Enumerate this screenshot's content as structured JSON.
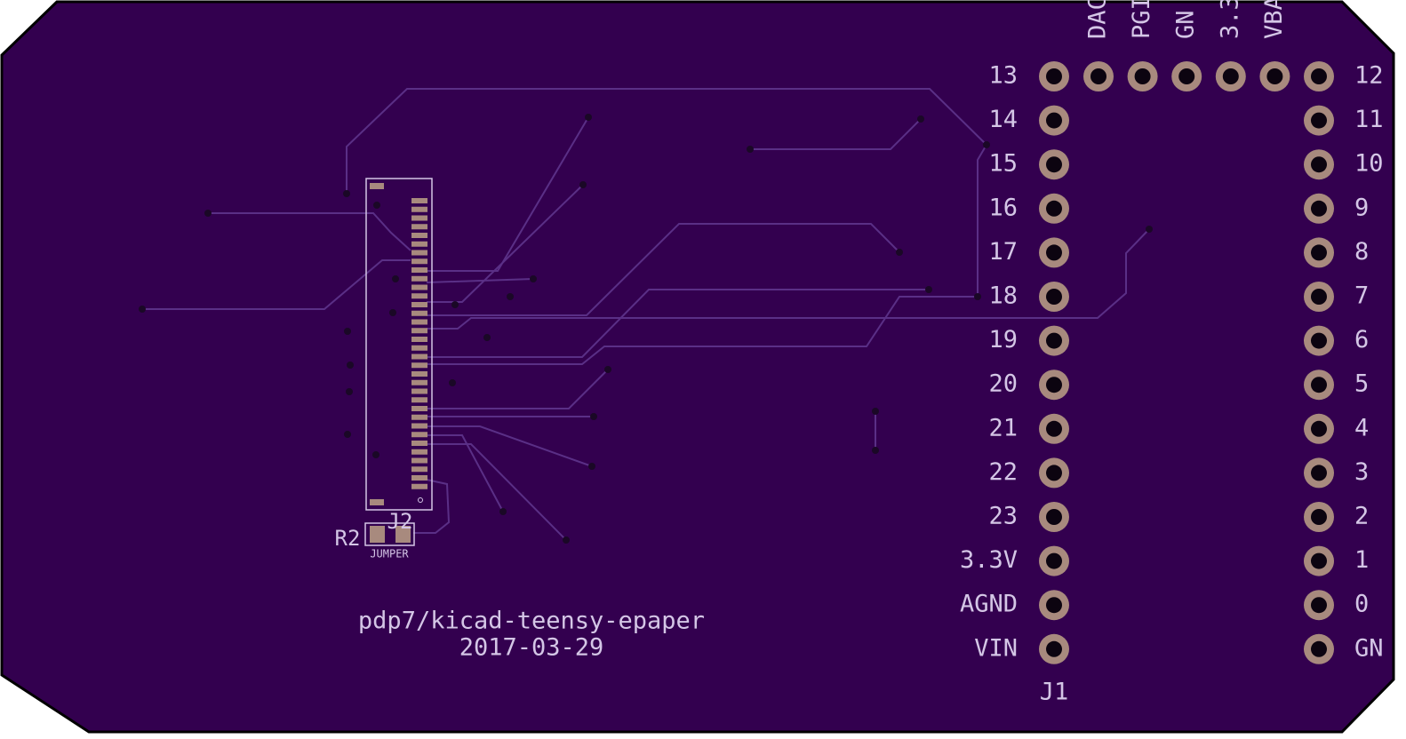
{
  "header_labels": [
    "DAC",
    "PGI",
    "GN",
    "3.3",
    "VBA"
  ],
  "left_pins": [
    "13",
    "14",
    "15",
    "16",
    "17",
    "18",
    "19",
    "20",
    "21",
    "22",
    "23",
    "3.3V",
    "AGND",
    "VIN"
  ],
  "right_pins": [
    "12",
    "11",
    "10",
    "9",
    "8",
    "7",
    "6",
    "5",
    "4",
    "3",
    "2",
    "1",
    "0",
    "GN"
  ],
  "connector_ref": "J1",
  "fpc_ref": "J2",
  "jumper_ref": "R2",
  "jumper_value": "JUMPER",
  "footer": {
    "title": "pdp7/kicad-teensy-epaper",
    "date": "2017-03-29"
  }
}
